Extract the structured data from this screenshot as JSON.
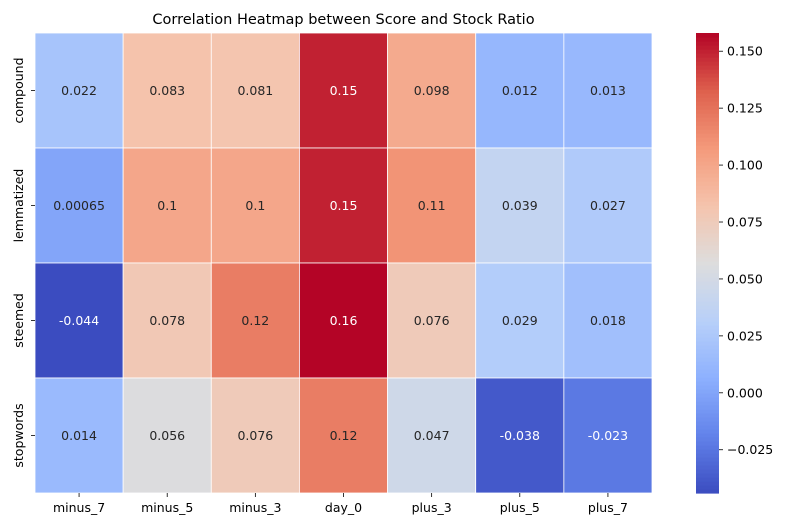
{
  "chart_data": {
    "type": "heatmap",
    "title": "Correlation Heatmap between Score and Stock Ratio",
    "x": [
      "minus_7",
      "minus_5",
      "minus_3",
      "day_0",
      "plus_3",
      "plus_5",
      "plus_7"
    ],
    "y": [
      "compound",
      "lemmatized",
      "steemed",
      "stopwords"
    ],
    "values": [
      [
        0.022,
        0.083,
        0.081,
        0.15,
        0.098,
        0.012,
        0.013
      ],
      [
        0.00065,
        0.1,
        0.1,
        0.15,
        0.11,
        0.039,
        0.027
      ],
      [
        -0.044,
        0.078,
        0.12,
        0.16,
        0.076,
        0.029,
        0.018
      ],
      [
        0.014,
        0.056,
        0.076,
        0.12,
        0.047,
        -0.038,
        -0.023
      ]
    ],
    "cell_labels": [
      [
        "0.022",
        "0.083",
        "0.081",
        "0.15",
        "0.098",
        "0.012",
        "0.013"
      ],
      [
        "0.00065",
        "0.1",
        "0.1",
        "0.15",
        "0.11",
        "0.039",
        "0.027"
      ],
      [
        "-0.044",
        "0.078",
        "0.12",
        "0.16",
        "0.076",
        "0.029",
        "0.018"
      ],
      [
        "0.014",
        "0.056",
        "0.076",
        "0.12",
        "0.047",
        "-0.038",
        "-0.023"
      ]
    ],
    "colormap": "coolwarm",
    "vmin": -0.044,
    "vmax": 0.158,
    "colorbar_ticks": [
      -0.025,
      0.0,
      0.025,
      0.05,
      0.075,
      0.1,
      0.125,
      0.15
    ],
    "colorbar_tick_labels": [
      "−0.025",
      "0.000",
      "0.025",
      "0.050",
      "0.075",
      "0.100",
      "0.125",
      "0.150"
    ],
    "xlabel": "",
    "ylabel": "",
    "grid": false,
    "legend": "colorbar-right"
  }
}
